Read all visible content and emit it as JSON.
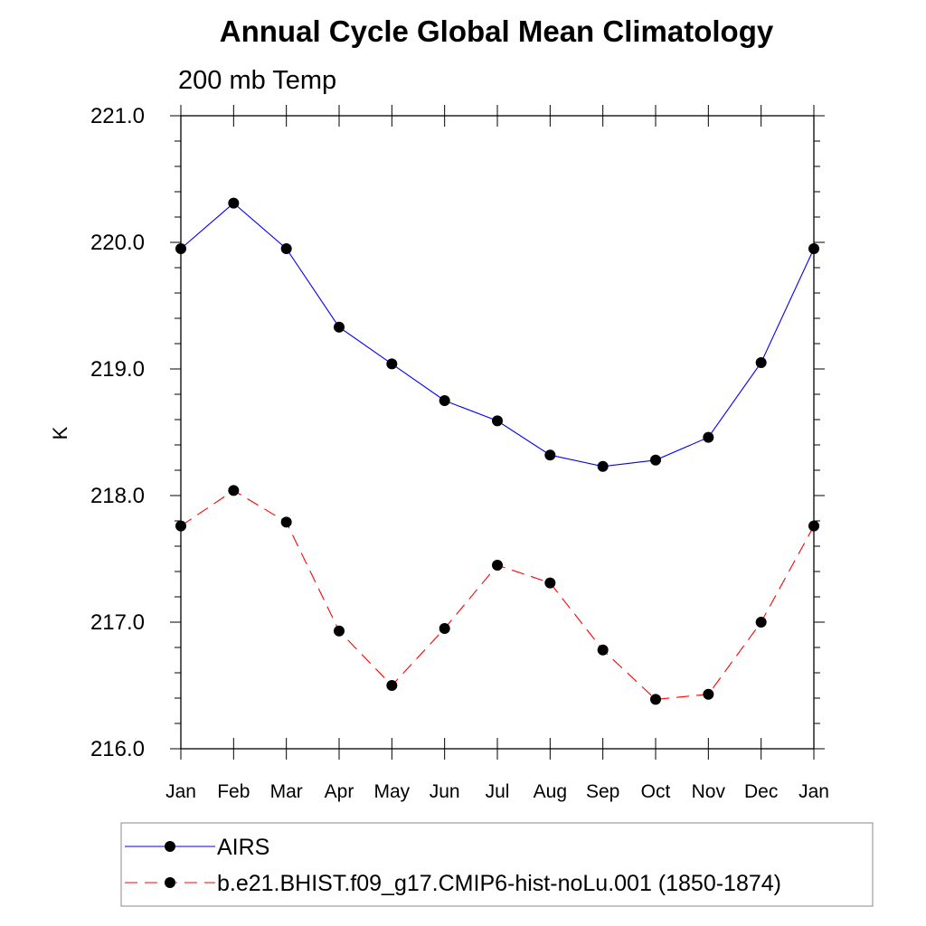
{
  "chart_data": {
    "type": "line",
    "title": "Annual Cycle Global Mean Climatology",
    "subtitle": "200 mb Temp",
    "xlabel": "",
    "ylabel": "K",
    "categories": [
      "Jan",
      "Feb",
      "Mar",
      "Apr",
      "May",
      "Jun",
      "Jul",
      "Aug",
      "Sep",
      "Oct",
      "Nov",
      "Dec",
      "Jan"
    ],
    "ylim": [
      216.0,
      221.0
    ],
    "yticks": [
      "216.0",
      "217.0",
      "218.0",
      "219.0",
      "220.0",
      "221.0"
    ],
    "series": [
      {
        "name": "AIRS",
        "color": "#0000ff",
        "dash": "solid",
        "marker": "filled-circle",
        "values": [
          219.95,
          220.31,
          219.95,
          219.33,
          219.04,
          218.75,
          218.59,
          218.32,
          218.23,
          218.28,
          218.46,
          219.05,
          219.95
        ]
      },
      {
        "name": "b.e21.BHIST.f09_g17.CMIP6-hist-noLu.001 (1850-1874)",
        "color": "#ff0000",
        "dash": "dashed",
        "marker": "filled-circle",
        "values": [
          217.76,
          218.04,
          217.79,
          216.93,
          216.5,
          216.95,
          217.45,
          217.31,
          216.78,
          216.39,
          216.43,
          217.0,
          217.76
        ]
      }
    ],
    "grid": false,
    "legend_position": "bottom"
  }
}
